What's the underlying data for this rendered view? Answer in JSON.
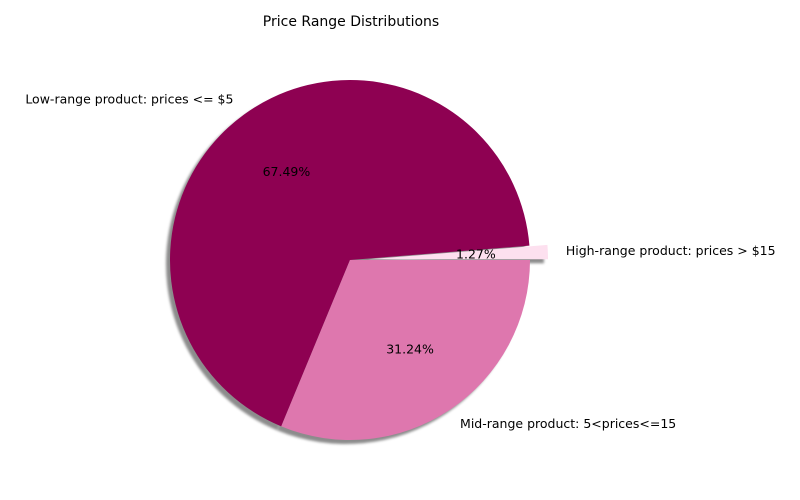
{
  "chart_data": {
    "type": "pie",
    "title": "Price Range Distributions",
    "start_angle_deg": 0,
    "shadow": true,
    "slices": [
      {
        "label": "High-range product: prices > $15",
        "value": 1.27,
        "pct_label": "1.27%",
        "color": "#fde0ef",
        "exploded": true
      },
      {
        "label": "Low-range product: prices <= $5",
        "value": 67.49,
        "pct_label": "67.49%",
        "color": "#8e0152",
        "exploded": false
      },
      {
        "label": "Mid-range product: 5<prices<=15",
        "value": 31.24,
        "pct_label": "31.24%",
        "color": "#de77ae",
        "exploded": false
      }
    ]
  }
}
